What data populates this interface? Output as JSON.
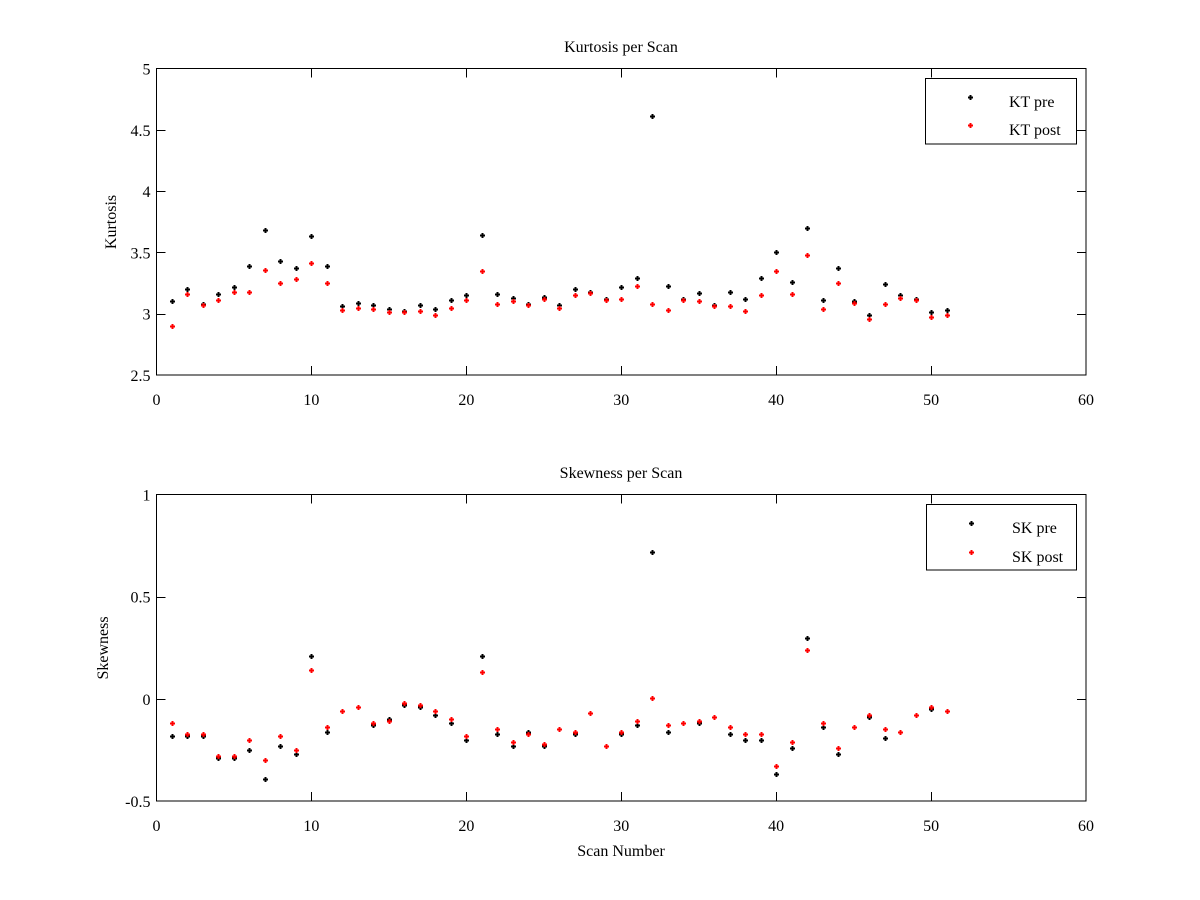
{
  "chart_data": [
    {
      "type": "scatter",
      "title": "Kurtosis per Scan",
      "xlabel": "",
      "ylabel": "Kurtosis",
      "xlim": [
        0,
        60
      ],
      "ylim": [
        2.5,
        5
      ],
      "xticks": [
        0,
        10,
        20,
        30,
        40,
        50,
        60
      ],
      "xtick_labels": [
        "0",
        "10",
        "20",
        "30",
        "40",
        "50",
        "60"
      ],
      "yticks": [
        2.5,
        3,
        3.5,
        4,
        4.5,
        5
      ],
      "ytick_labels": [
        "2.5",
        "3",
        "3.5",
        "4",
        "4.5",
        "5"
      ],
      "grid": false,
      "legend": "top-right",
      "x": [
        1,
        2,
        3,
        4,
        5,
        6,
        7,
        8,
        9,
        10,
        11,
        12,
        13,
        14,
        15,
        16,
        17,
        18,
        19,
        20,
        21,
        22,
        23,
        24,
        25,
        26,
        27,
        28,
        29,
        30,
        31,
        32,
        33,
        34,
        35,
        36,
        37,
        38,
        39,
        40,
        41,
        42,
        43,
        44,
        45,
        46,
        47,
        48,
        49,
        50,
        51
      ],
      "series": [
        {
          "name": "KT pre",
          "color": "#000000",
          "values": [
            3.1,
            3.2,
            3.08,
            3.16,
            3.22,
            3.39,
            3.68,
            3.43,
            3.37,
            3.63,
            3.39,
            3.06,
            3.09,
            3.07,
            3.04,
            3.02,
            3.07,
            3.04,
            3.11,
            3.15,
            3.64,
            3.16,
            3.13,
            3.08,
            3.14,
            3.07,
            3.2,
            3.18,
            3.12,
            3.22,
            3.29,
            4.61,
            3.23,
            3.12,
            3.17,
            3.07,
            3.18,
            3.12,
            3.29,
            3.5,
            3.26,
            3.7,
            3.11,
            3.37,
            3.1,
            2.99,
            3.24,
            3.15,
            3.12,
            3.01,
            3.03
          ]
        },
        {
          "name": "KT post",
          "color": "#ff0000",
          "values": [
            2.9,
            3.16,
            3.07,
            3.11,
            3.18,
            3.18,
            3.36,
            3.25,
            3.28,
            3.41,
            3.25,
            3.03,
            3.05,
            3.04,
            3.01,
            3.01,
            3.02,
            2.99,
            3.05,
            3.11,
            3.35,
            3.08,
            3.1,
            3.07,
            3.12,
            3.05,
            3.15,
            3.17,
            3.11,
            3.12,
            3.23,
            3.08,
            3.03,
            3.11,
            3.1,
            3.06,
            3.06,
            3.02,
            3.15,
            3.35,
            3.16,
            3.48,
            3.04,
            3.25,
            3.09,
            2.96,
            3.08,
            3.13,
            3.11,
            2.97,
            2.99
          ]
        }
      ]
    },
    {
      "type": "scatter",
      "title": "Skewness per Scan",
      "xlabel": "Scan Number",
      "ylabel": "Skewness",
      "xlim": [
        0,
        60
      ],
      "ylim": [
        -0.5,
        1
      ],
      "xticks": [
        0,
        10,
        20,
        30,
        40,
        50,
        60
      ],
      "xtick_labels": [
        "0",
        "10",
        "20",
        "30",
        "40",
        "50",
        "60"
      ],
      "yticks": [
        -0.5,
        0,
        0.5,
        1
      ],
      "ytick_labels": [
        "-0.5",
        "0",
        "0.5",
        "1"
      ],
      "grid": false,
      "legend": "top-right",
      "x": [
        1,
        2,
        3,
        4,
        5,
        6,
        7,
        8,
        9,
        10,
        11,
        12,
        13,
        14,
        15,
        16,
        17,
        18,
        19,
        20,
        21,
        22,
        23,
        24,
        25,
        26,
        27,
        28,
        29,
        30,
        31,
        32,
        33,
        34,
        35,
        36,
        37,
        38,
        39,
        40,
        41,
        42,
        43,
        44,
        45,
        46,
        47,
        48,
        49,
        50,
        51
      ],
      "series": [
        {
          "name": "SK pre",
          "color": "#000000",
          "values": [
            -0.18,
            -0.18,
            -0.18,
            -0.29,
            -0.29,
            -0.25,
            -0.39,
            -0.23,
            -0.27,
            0.21,
            -0.16,
            -0.06,
            -0.04,
            -0.13,
            -0.1,
            -0.03,
            -0.04,
            -0.08,
            -0.12,
            -0.2,
            0.21,
            -0.17,
            -0.23,
            -0.16,
            -0.23,
            -0.15,
            -0.17,
            -0.07,
            -0.23,
            -0.17,
            -0.13,
            0.72,
            -0.16,
            -0.12,
            -0.12,
            -0.09,
            -0.17,
            -0.2,
            -0.2,
            -0.37,
            -0.24,
            0.3,
            -0.14,
            -0.27,
            -0.14,
            -0.09,
            -0.19,
            -0.16,
            -0.08,
            -0.05,
            -0.06
          ]
        },
        {
          "name": "SK post",
          "color": "#ff0000",
          "values": [
            -0.12,
            -0.17,
            -0.17,
            -0.28,
            -0.28,
            -0.2,
            -0.3,
            -0.18,
            -0.25,
            0.14,
            -0.14,
            -0.06,
            -0.04,
            -0.12,
            -0.11,
            -0.02,
            -0.03,
            -0.06,
            -0.1,
            -0.18,
            0.13,
            -0.15,
            -0.21,
            -0.17,
            -0.22,
            -0.15,
            -0.16,
            -0.07,
            -0.23,
            -0.16,
            -0.11,
            0.005,
            -0.13,
            -0.12,
            -0.11,
            -0.09,
            -0.14,
            -0.17,
            -0.17,
            -0.33,
            -0.21,
            0.24,
            -0.12,
            -0.24,
            -0.14,
            -0.08,
            -0.15,
            -0.16,
            -0.08,
            -0.04,
            -0.06
          ]
        }
      ]
    }
  ]
}
